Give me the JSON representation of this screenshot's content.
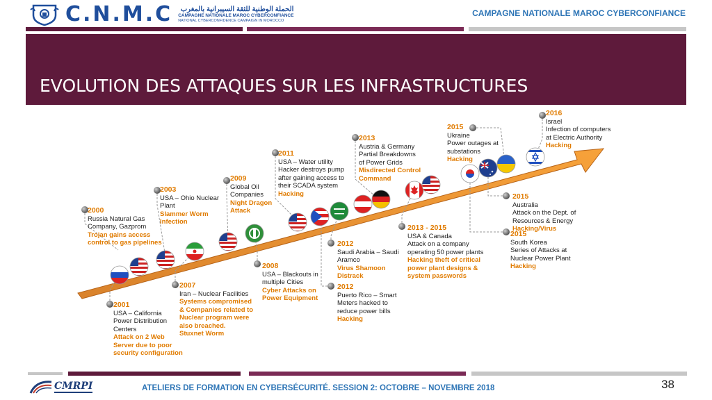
{
  "header": {
    "logo_text": "C.N.M.C",
    "logo_sub_ar": "الحملة الوطنية للثقة السيبرانية بالمغرب",
    "logo_sub_fr": "CAMPAGNE NATIONALE MAROC CYBERCONFIANCE",
    "logo_sub_en": "NATIONAL CYBERCONFIDENCE CAMPAIGN IN MOROCCO",
    "right_title": "CAMPAGNE NATIONALE MAROC CYBERCONFIANCE"
  },
  "slide": {
    "title": "EVOLUTION DES ATTAQUES SUR LES INFRASTRUCTURES"
  },
  "timeline": [
    {
      "year": "2000",
      "lines": [
        "Russia Natural Gas",
        "Company, Gazprom"
      ],
      "highlight": [
        "Trojan gains access",
        "control to gas pipelines"
      ]
    },
    {
      "year": "2001",
      "lines": [
        "USA – California",
        "Power Distribution",
        "Centers"
      ],
      "highlight": [
        "Attack on 2 Web",
        "Server due to poor",
        "security configuration"
      ]
    },
    {
      "year": "2003",
      "lines": [
        "USA – Ohio Nuclear",
        "Plant"
      ],
      "highlight": [
        "Slammer Worm",
        "Infection"
      ]
    },
    {
      "year": "2007",
      "lines": [
        "Iran – Nuclear Facilities"
      ],
      "highlight": [
        "Systems compromised",
        "& Companies related to",
        "Nuclear program were",
        "also breached.",
        "Stuxnet Worm"
      ]
    },
    {
      "year": "2009",
      "lines": [
        "Global Oil",
        "Companies"
      ],
      "highlight": [
        "Night Dragon",
        "Attack"
      ]
    },
    {
      "year": "2008",
      "lines": [
        "USA – Blackouts in",
        "multiple Cities"
      ],
      "highlight": [
        "Cyber Attacks on",
        "Power Equipment"
      ]
    },
    {
      "year": "2011",
      "lines": [
        "USA – Water utility",
        "Hacker destroys pump",
        "after gaining access to",
        "their SCADA system"
      ],
      "highlight": [
        "Hacking"
      ]
    },
    {
      "year": "2012",
      "lines": [
        "Saudi Arabia – Saudi",
        "Aramco"
      ],
      "highlight": [
        "Virus Shamoon",
        "Distrack"
      ]
    },
    {
      "year": "2012",
      "lines": [
        "Puerto Rico – Smart",
        "Meters hacked to",
        "reduce power bills"
      ],
      "highlight": [
        "Hacking"
      ]
    },
    {
      "year": "2013",
      "lines": [
        "Austria & Germany",
        "Partial Breakdowns",
        "of Power Grids"
      ],
      "highlight": [
        "Misdirected Control",
        "Command"
      ]
    },
    {
      "year": "2013 - 2015",
      "lines": [
        "USA & Canada",
        "Attack on  a company",
        "operating 50 power plants"
      ],
      "highlight": [
        "Hacking theft of critical",
        "power plant designs &",
        "system passwords"
      ]
    },
    {
      "year": "2015",
      "lines": [
        "Ukraine",
        "Power outages at",
        "substations"
      ],
      "highlight": [
        "Hacking"
      ]
    },
    {
      "year": "2016",
      "lines": [
        "Israel",
        "Infection of computers",
        "at Electric Authority"
      ],
      "highlight": [
        "Hacking"
      ]
    },
    {
      "year": "2015",
      "lines": [
        "Australia",
        "Attack on the Dept. of",
        "Resources & Energy"
      ],
      "highlight": [
        "Hacking/Virus"
      ]
    },
    {
      "year": "2015",
      "lines": [
        "South Korea",
        "Series of Attacks at",
        "Nuclear Power Plant"
      ],
      "highlight": [
        "Hacking"
      ]
    }
  ],
  "footer": {
    "logo_text": "CMRPI",
    "text": "ATELIERS DE FORMATION EN CYBERSÉCURITÉ.  SESSION 2: OCTOBRE – NOVEMBRE 2018",
    "page": "38"
  },
  "colors": {
    "banner": "#5e1a3b",
    "accent_orange": "#e07b00",
    "header_blue": "#2e75b6",
    "arrow": "#f39a2b"
  }
}
